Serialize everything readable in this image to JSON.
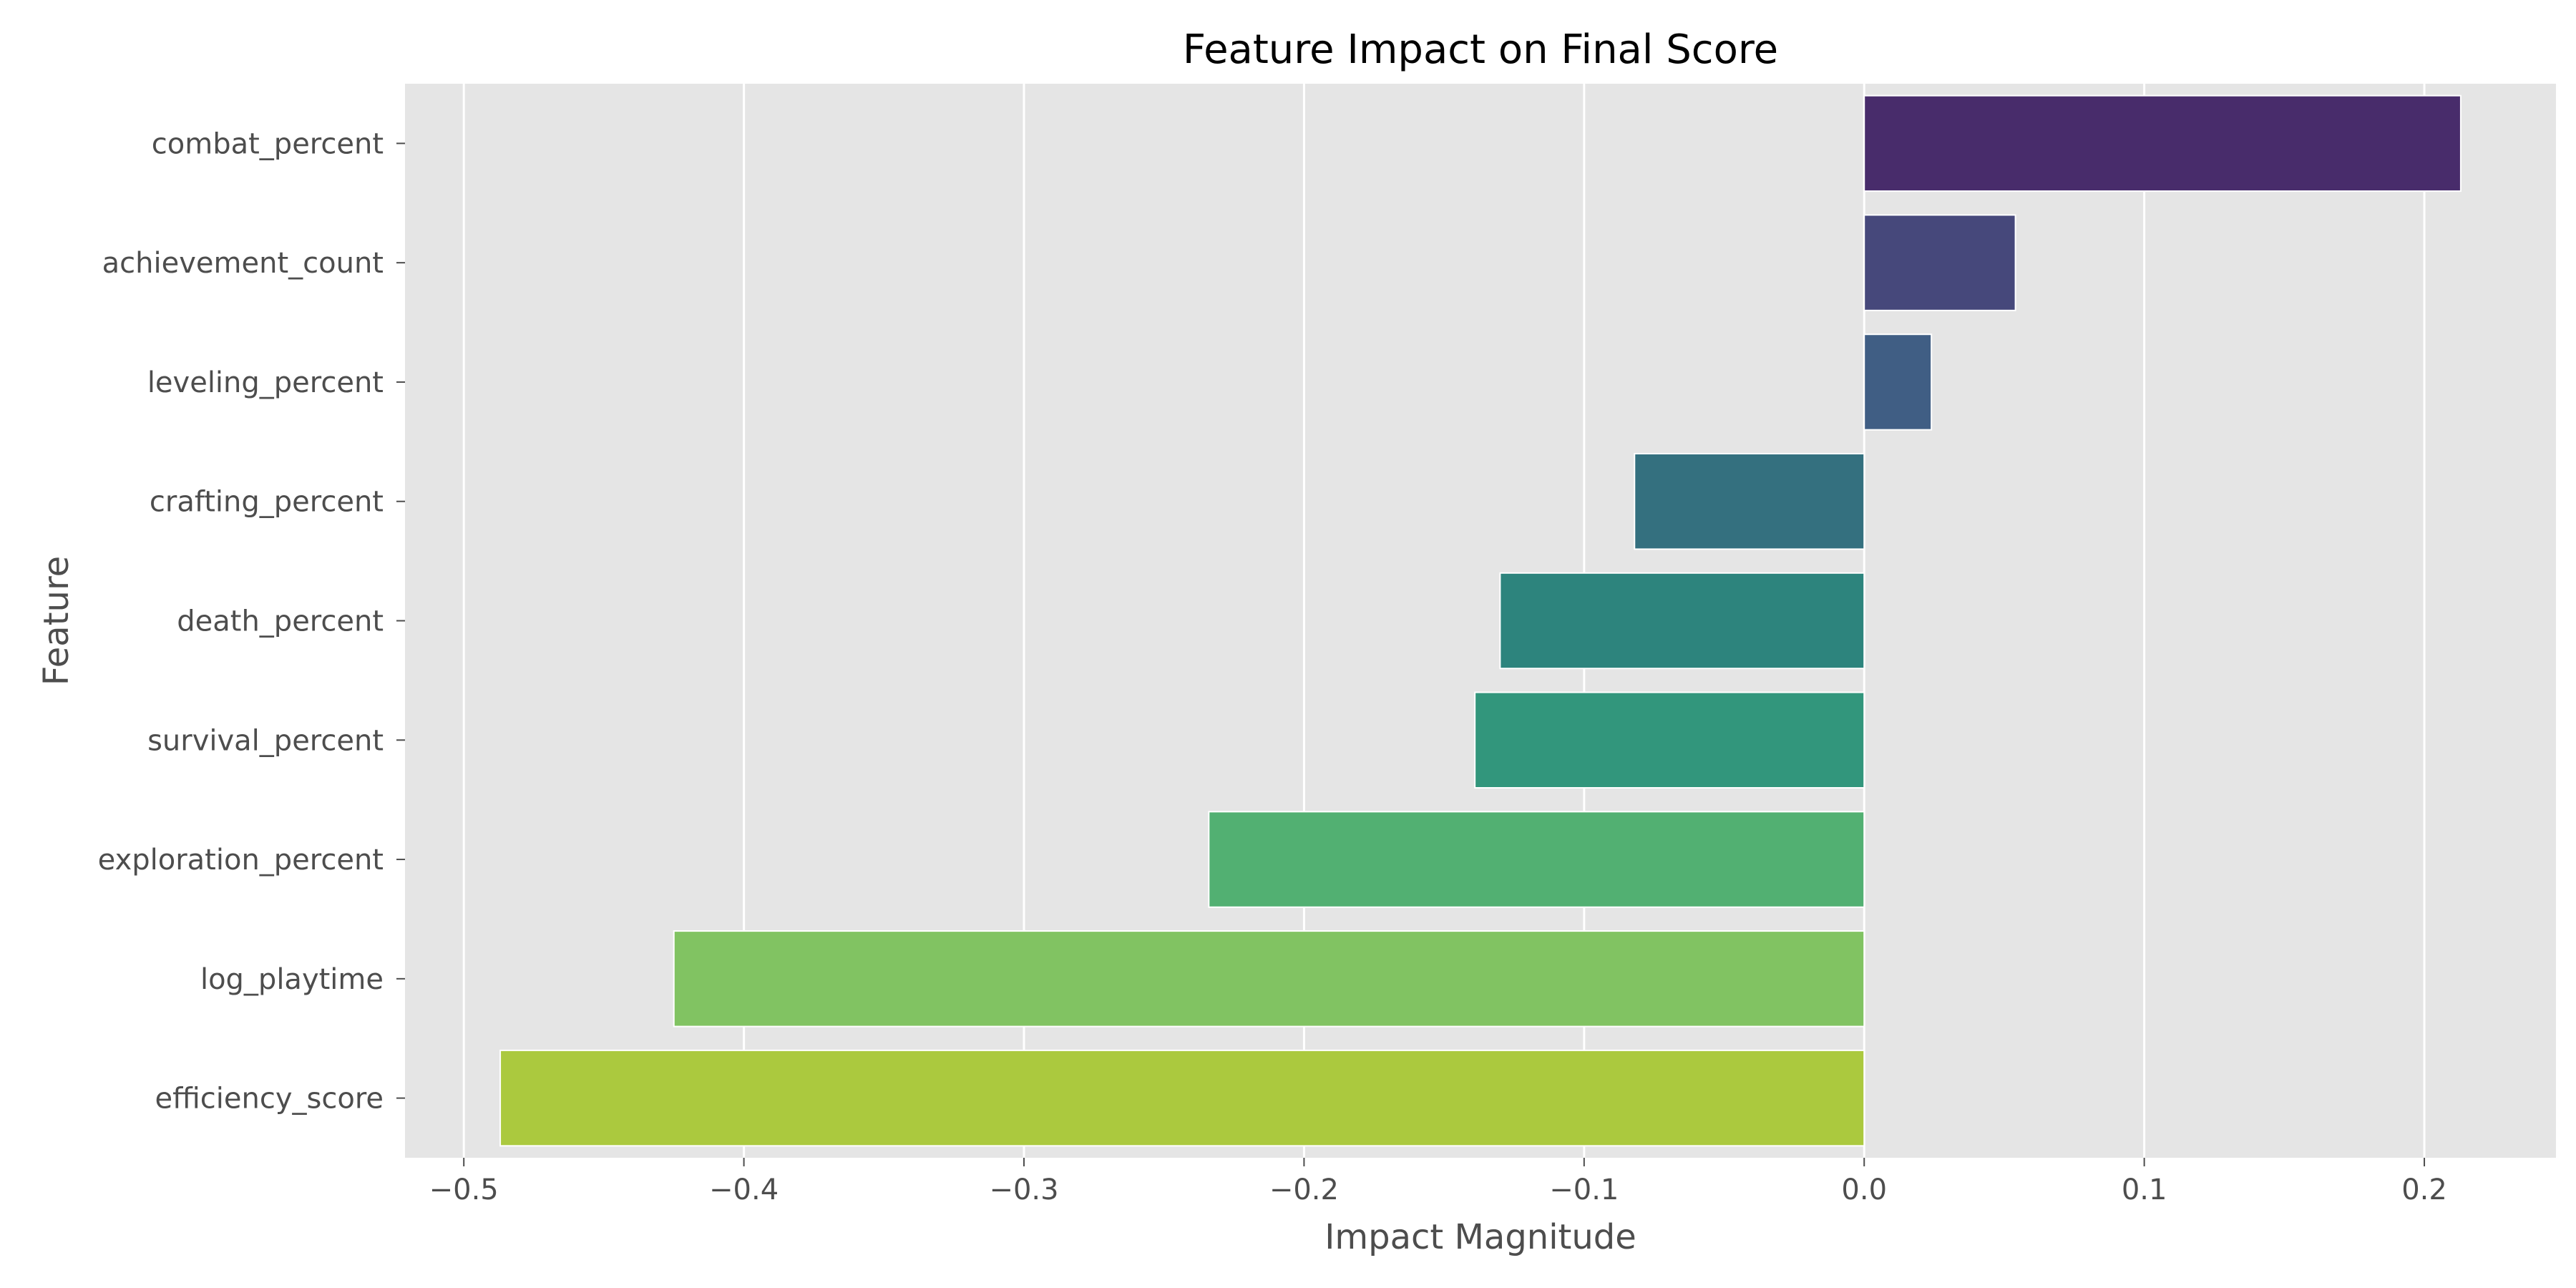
{
  "chart_data": {
    "type": "bar",
    "orientation": "horizontal",
    "title": "Feature Impact on Final Score",
    "xlabel": "Impact Magnitude",
    "ylabel": "Feature",
    "xlim": [
      -0.521,
      0.247
    ],
    "xticks": [
      -0.5,
      -0.4,
      -0.3,
      -0.2,
      -0.1,
      0.0,
      0.1,
      0.2
    ],
    "xtick_labels": [
      "−0.5",
      "−0.4",
      "−0.3",
      "−0.2",
      "−0.1",
      "0.0",
      "0.1",
      "0.2"
    ],
    "grid": true,
    "categories": [
      "combat_percent",
      "achievement_count",
      "leveling_percent",
      "crafting_percent",
      "death_percent",
      "survival_percent",
      "exploration_percent",
      "log_playtime",
      "efficiency_score"
    ],
    "values": [
      0.213,
      0.054,
      0.024,
      -0.082,
      -0.13,
      -0.139,
      -0.234,
      -0.425,
      -0.487
    ],
    "colors": [
      "#482c6b",
      "#46487b",
      "#405e84",
      "#34707f",
      "#2d847d",
      "#32967c",
      "#52b072",
      "#81c362",
      "#abc93e"
    ],
    "background_color": "#e5e5e5"
  }
}
